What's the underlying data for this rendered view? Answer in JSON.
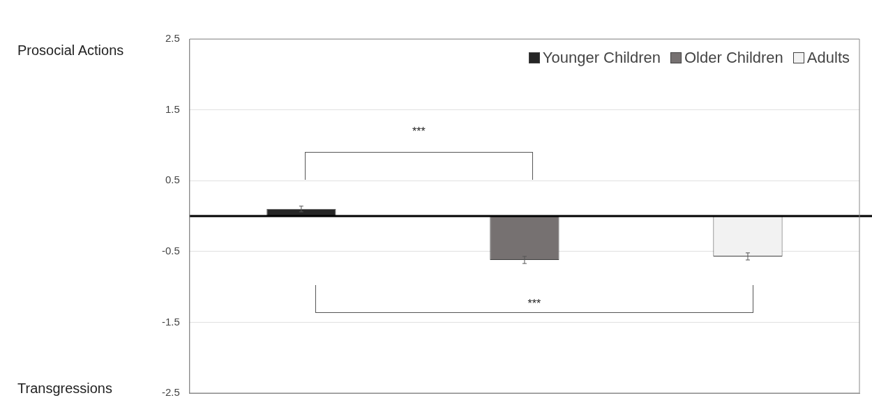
{
  "chart_data": {
    "type": "bar",
    "categories": [
      null,
      null,
      null
    ],
    "series": [
      {
        "name": "Younger Children",
        "color": "#262626",
        "values": [
          0.1,
          null,
          null
        ],
        "errors": [
          0.04,
          null,
          null
        ]
      },
      {
        "name": "Older Children",
        "color": "#767171",
        "values": [
          null,
          -0.62,
          null
        ],
        "errors": [
          null,
          0.05,
          null
        ]
      },
      {
        "name": "Adults",
        "color": "#f2f2f2",
        "values": [
          null,
          null,
          -0.57
        ],
        "errors": [
          null,
          null,
          0.05
        ]
      }
    ],
    "ylim": [
      -2.5,
      2.5
    ],
    "yticks": [
      -2.5,
      -1.5,
      -0.5,
      0.5,
      1.5,
      2.5
    ],
    "grid": "y",
    "legend": "top right",
    "ref_lines": [
      {
        "axis": "y",
        "value": 0,
        "color": "#000000"
      }
    ],
    "annotations": [
      "Prosocial Actions",
      "Transgressions",
      "***",
      "***"
    ]
  }
}
